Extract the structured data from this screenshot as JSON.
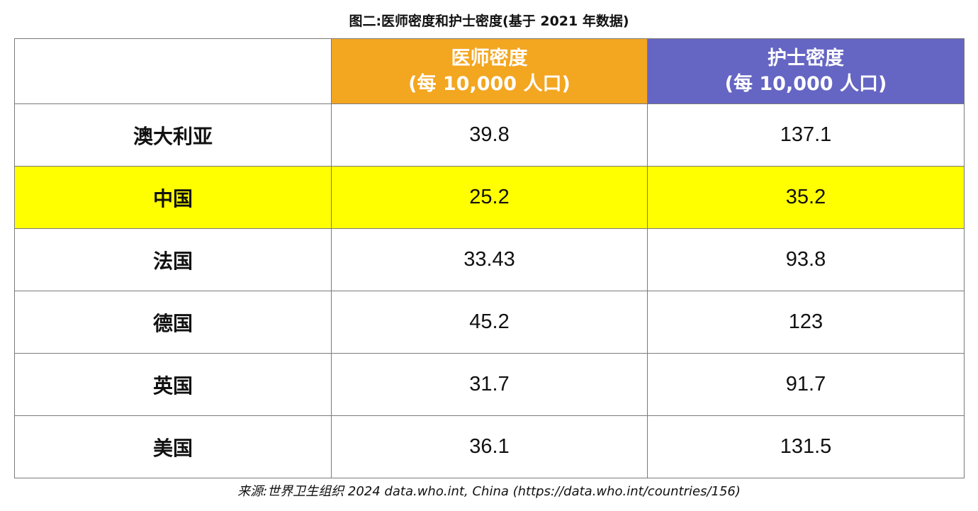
{
  "chart_data": {
    "type": "table",
    "title": "图二:医师密度和护士密度(基于 2021 年数据)",
    "columns": [
      {
        "line1": "医师密度",
        "line2": "(每 10,000 人口)",
        "color": "#f3a620"
      },
      {
        "line1": "护士密度",
        "line2": "(每 10,000 人口)",
        "color": "#6565c4"
      }
    ],
    "rows": [
      {
        "country": "澳大利亚",
        "physician_density": "39.8",
        "nurse_density": "137.1"
      },
      {
        "country": "中国",
        "physician_density": "25.2",
        "nurse_density": "35.2"
      },
      {
        "country": "法国",
        "physician_density": "33.43",
        "nurse_density": "93.8"
      },
      {
        "country": "德国",
        "physician_density": "45.2",
        "nurse_density": "123"
      },
      {
        "country": "英国",
        "physician_density": "31.7",
        "nurse_density": "91.7"
      },
      {
        "country": "美国",
        "physician_density": "36.1",
        "nurse_density": "131.5"
      }
    ],
    "highlight_row_color": "#ffff00",
    "source": "来源:世界卫生组织 2024 data.who.int, China (https://data.who.int/countries/156)"
  }
}
